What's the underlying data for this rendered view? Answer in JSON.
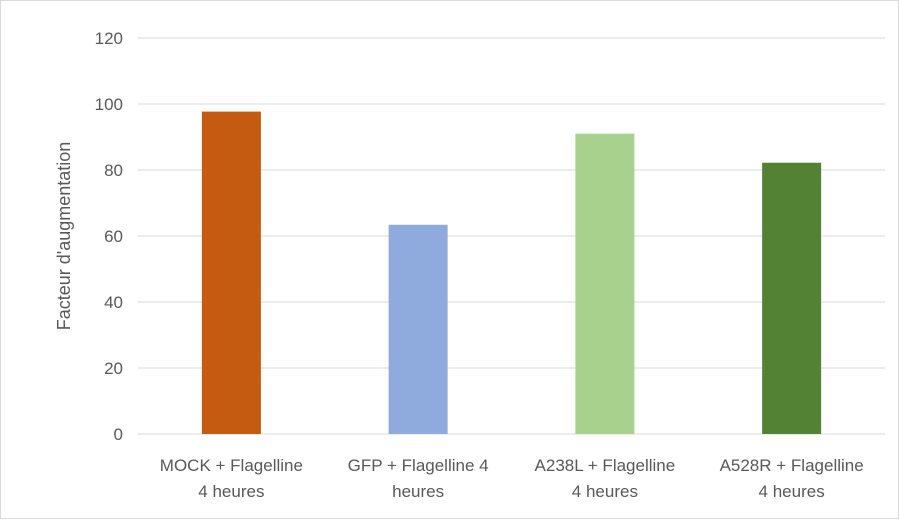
{
  "chart_data": {
    "type": "bar",
    "title": "",
    "xlabel": "",
    "ylabel": "Facteur d'augmentation",
    "ylim": [
      0,
      120
    ],
    "yticks": [
      0,
      20,
      40,
      60,
      80,
      100,
      120
    ],
    "grid": true,
    "legend": "none",
    "categories": [
      [
        "MOCK + Flagelline",
        "4 heures"
      ],
      [
        "GFP + Flagelline 4",
        "heures"
      ],
      [
        "A238L + Flagelline",
        "4 heures"
      ],
      [
        "A528R + Flagelline",
        "4 heures"
      ]
    ],
    "values": [
      97.7,
      63.4,
      91.0,
      82.2
    ],
    "colors": [
      "#c55a11",
      "#8faadc",
      "#a9d18e",
      "#548235"
    ]
  }
}
